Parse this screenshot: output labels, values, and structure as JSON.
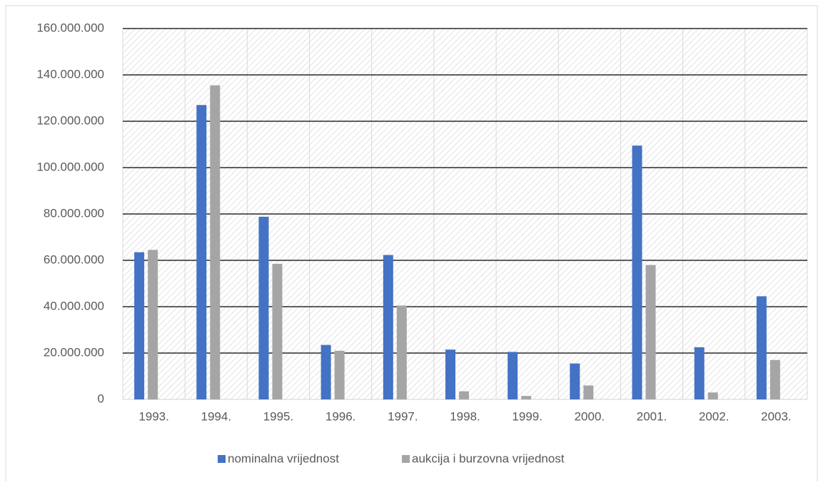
{
  "chart_data": {
    "type": "bar",
    "categories": [
      "1993.",
      "1994.",
      "1995.",
      "1996.",
      "1997.",
      "1998.",
      "1999.",
      "2000.",
      "2001.",
      "2002.",
      "2003."
    ],
    "series": [
      {
        "name": "nominalna vrijednost",
        "color": "#4472c4",
        "values": [
          63500000,
          127000000,
          78800000,
          23500000,
          62300000,
          21500000,
          20500000,
          15500000,
          109500000,
          22500000,
          44500000
        ]
      },
      {
        "name": "aukcija i burzovna vrijednost",
        "color": "#a5a5a5",
        "values": [
          64500000,
          135500000,
          58500000,
          21000000,
          40500000,
          3500000,
          1500000,
          6000000,
          58000000,
          3000000,
          17000000
        ]
      }
    ],
    "ylim": [
      0,
      160000000
    ],
    "yticks": [
      0,
      {
        "value": 20000000,
        "label": "20.000.000"
      },
      {
        "value": 40000000,
        "label": "40.000.000"
      },
      {
        "value": 60000000,
        "label": "60.000.000"
      },
      {
        "value": 80000000,
        "label": "80.000.000"
      },
      {
        "value": 100000000,
        "label": "100.000.000"
      },
      {
        "value": 120000000,
        "label": "120.000.000"
      },
      {
        "value": 140000000,
        "label": "140.000.000"
      },
      {
        "value": 160000000,
        "label": "160.000.000"
      }
    ],
    "grid": true,
    "legend": "bottom"
  }
}
